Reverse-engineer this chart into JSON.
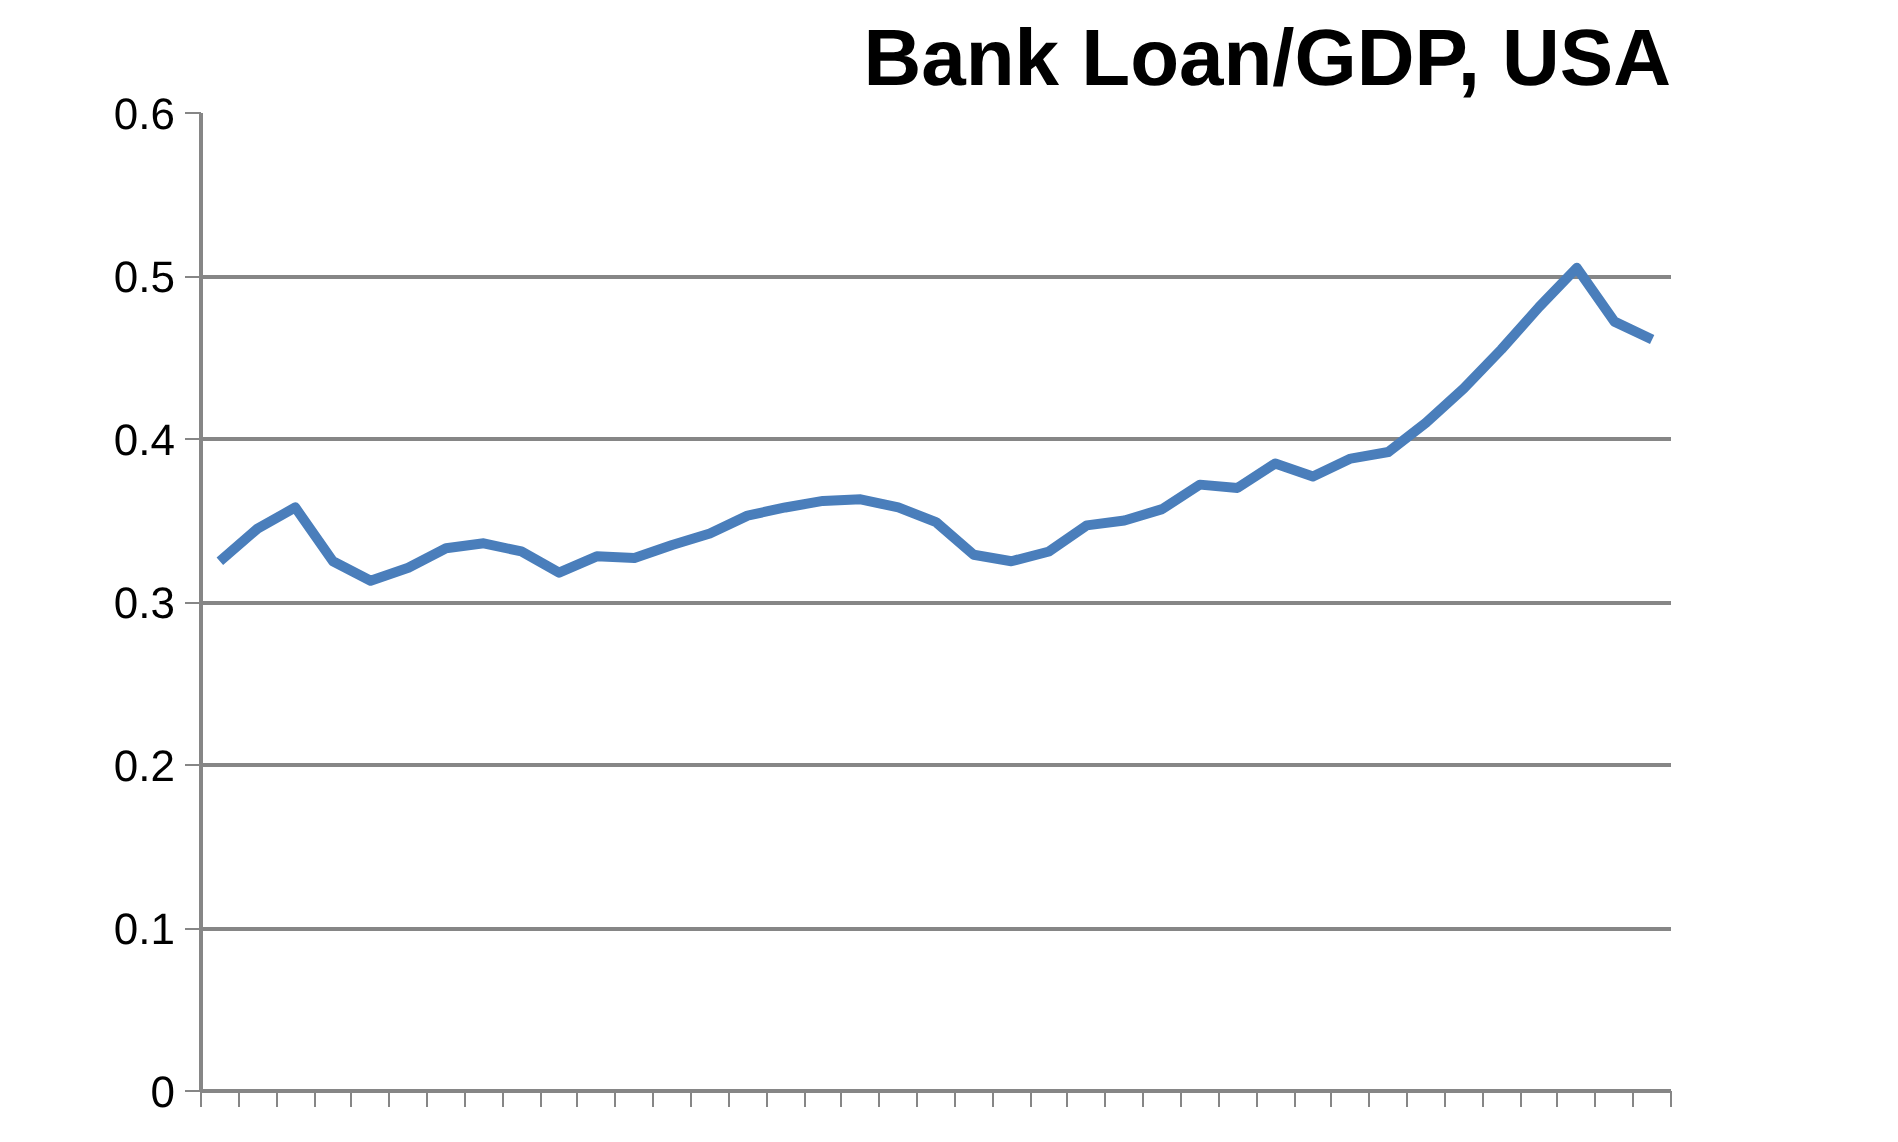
{
  "chart_data": {
    "type": "line",
    "title": "Bank Loan/GDP, USA",
    "categories": [
      null,
      null,
      null,
      null,
      null,
      null,
      null,
      null,
      null,
      null,
      null,
      null,
      null,
      null,
      null,
      null,
      null,
      null,
      null,
      null,
      null,
      null,
      null,
      null,
      null,
      null,
      null,
      null,
      null,
      null,
      null,
      null,
      null,
      null,
      null,
      null,
      null,
      null,
      null
    ],
    "series": [
      {
        "color": "#4a7ebb",
        "values": [
          0.325,
          0.345,
          0.358,
          0.325,
          0.313,
          0.321,
          0.333,
          0.336,
          0.331,
          0.318,
          0.328,
          0.327,
          0.335,
          0.342,
          0.353,
          0.358,
          0.362,
          0.363,
          0.358,
          0.349,
          0.329,
          0.325,
          0.331,
          0.347,
          0.35,
          0.357,
          0.372,
          0.37,
          0.385,
          0.377,
          0.388,
          0.392,
          0.41,
          0.431,
          0.455,
          0.481,
          0.505,
          0.472,
          0.461
        ]
      }
    ],
    "ylim": [
      0,
      0.6
    ],
    "yticks": [
      0,
      0.1,
      0.2,
      0.3,
      0.4,
      0.5,
      0.6
    ],
    "grid": "y",
    "tick_labels": "y",
    "line_style": "solid",
    "marker": "none"
  }
}
